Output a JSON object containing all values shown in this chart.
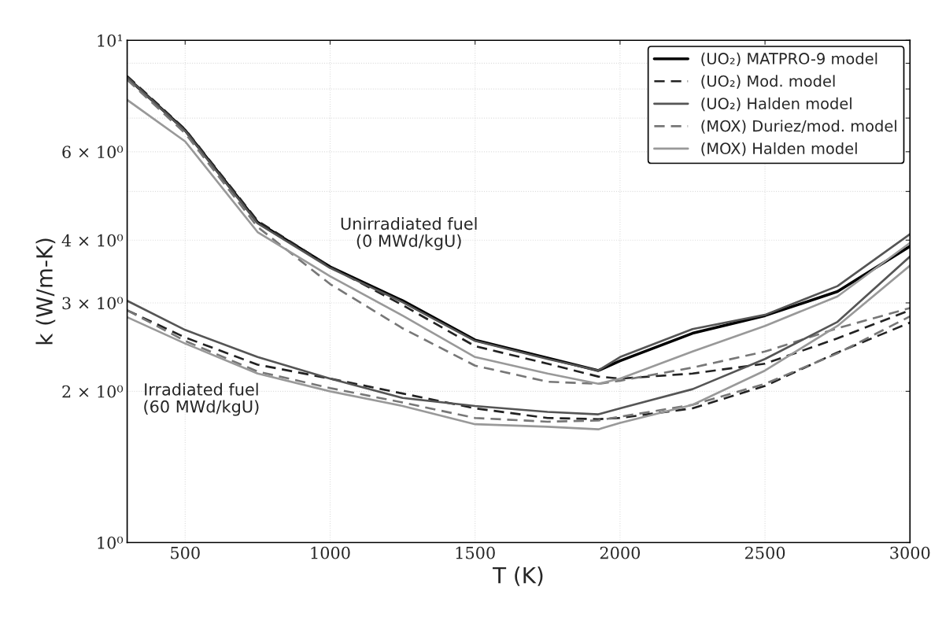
{
  "chart_data": {
    "type": "line",
    "xlabel": "T (K)",
    "ylabel": "k (W/m-K)",
    "log": "y",
    "xlim": [
      300,
      3000
    ],
    "xticks": [
      500,
      1000,
      1500,
      2000,
      2500,
      3000
    ],
    "ylim": [
      1,
      10
    ],
    "yticks": [
      {
        "value": 1,
        "label": "10⁰"
      },
      {
        "value": 2,
        "label": "2 × 10⁰"
      },
      {
        "value": 3,
        "label": "3 × 10⁰"
      },
      {
        "value": 4,
        "label": "4 × 10⁰"
      },
      {
        "value": 5,
        "label": null
      },
      {
        "value": 6,
        "label": "6 × 10⁰"
      },
      {
        "value": 7,
        "label": null
      },
      {
        "value": 8,
        "label": null
      },
      {
        "value": 9,
        "label": null
      },
      {
        "value": 10,
        "label": "10¹"
      }
    ],
    "grid": true,
    "legend": "top right",
    "marker": "none",
    "x": [
      300,
      500,
      750,
      1000,
      1250,
      1500,
      1750,
      1925,
      2000,
      2250,
      2500,
      2750,
      3000
    ],
    "series": [
      {
        "name": "(UO₂) MATPRO-9 model",
        "color": "#000000",
        "line_style": "solid",
        "values": [
          8.43,
          6.62,
          4.34,
          3.54,
          3.03,
          2.53,
          2.33,
          2.2,
          2.3,
          2.61,
          2.83,
          3.16,
          3.89
        ]
      },
      {
        "name": "(UO₂) Mod. model",
        "color": "#222222",
        "line_style": "dashed",
        "values": [
          8.49,
          6.65,
          4.37,
          3.54,
          2.97,
          2.46,
          2.27,
          2.14,
          2.12,
          2.17,
          2.27,
          2.55,
          2.9
        ]
      },
      {
        "name": "(UO₂) Halden model",
        "color": "#555555",
        "line_style": "solid",
        "values": [
          8.43,
          6.6,
          4.32,
          3.52,
          3.01,
          2.52,
          2.32,
          2.2,
          2.34,
          2.66,
          2.84,
          3.24,
          4.11
        ]
      },
      {
        "name": "(MOX) Duriez/mod. model",
        "color": "#777777",
        "line_style": "dashed",
        "values": [
          8.35,
          6.53,
          4.25,
          3.27,
          2.67,
          2.25,
          2.09,
          2.07,
          2.1,
          2.23,
          2.4,
          2.67,
          2.93
        ]
      },
      {
        "name": "(MOX) Halden model",
        "color": "#999999",
        "line_style": "solid",
        "values": [
          7.61,
          6.29,
          4.15,
          3.39,
          2.83,
          2.34,
          2.17,
          2.07,
          2.12,
          2.4,
          2.7,
          3.09,
          3.95
        ]
      },
      {
        "color": "#222222",
        "line_style": "dashed",
        "values": [
          2.9,
          2.56,
          2.26,
          2.12,
          1.98,
          1.85,
          1.77,
          1.76,
          1.77,
          1.85,
          2.05,
          2.39,
          2.74
        ]
      },
      {
        "color": "#555555",
        "line_style": "solid",
        "values": [
          3.03,
          2.65,
          2.34,
          2.12,
          1.94,
          1.87,
          1.82,
          1.8,
          1.85,
          2.02,
          2.32,
          2.75,
          3.71
        ]
      },
      {
        "color": "#777777",
        "line_style": "dashed",
        "values": [
          2.9,
          2.52,
          2.19,
          2.03,
          1.9,
          1.77,
          1.74,
          1.75,
          1.78,
          1.88,
          2.07,
          2.38,
          2.82
        ]
      },
      {
        "color": "#999999",
        "line_style": "solid",
        "values": [
          2.81,
          2.49,
          2.17,
          2.0,
          1.87,
          1.72,
          1.7,
          1.68,
          1.73,
          1.88,
          2.2,
          2.7,
          3.56
        ]
      }
    ],
    "annotations": [
      "Unirradiated fuel\n(0 MWd/kgU)",
      "Irradiated fuel\n(60 MWd/kgU)"
    ]
  }
}
